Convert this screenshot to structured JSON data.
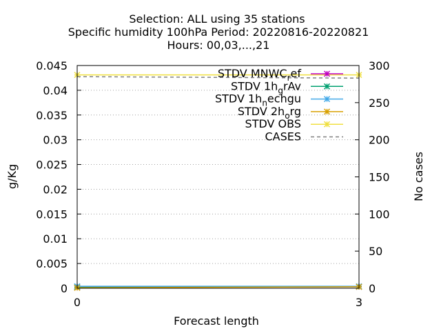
{
  "chart_data": {
    "type": "line",
    "title_lines": [
      "Selection: ALL using    35 stations",
      "Specific humidity 100hPa   Period: 20220816-20220821",
      "Hours:  00,03,...,21"
    ],
    "xlabel": "Forecast length",
    "ylabel": "g/Kg",
    "y2label": "No cases",
    "x": [
      0,
      3
    ],
    "x_ticks": [
      "0",
      "3"
    ],
    "xlim": [
      0,
      3
    ],
    "ylim": [
      0,
      0.045
    ],
    "y_ticks": [
      "0",
      "0.005",
      "0.01",
      "0.015",
      "0.02",
      "0.025",
      "0.03",
      "0.035",
      "0.04",
      "0.045"
    ],
    "y2lim": [
      0,
      300
    ],
    "y2_ticks": [
      "0",
      "50",
      "100",
      "150",
      "200",
      "250",
      "300"
    ],
    "grid": true,
    "legend_position": "top-right",
    "series": [
      {
        "name": "STDV MNWC_ref",
        "name_parts": [
          [
            "STDV MNWC",
            "n"
          ],
          [
            "r",
            "s"
          ],
          [
            "ef",
            "n"
          ]
        ],
        "color": "#c000c0",
        "marker": "x",
        "axis": "y",
        "values": [
          0.0002,
          0.0003
        ]
      },
      {
        "name": "STDV 1hgrAv",
        "name_parts": [
          [
            "STDV 1h",
            "n"
          ],
          [
            "g",
            "s"
          ],
          [
            "rAv",
            "n"
          ]
        ],
        "color": "#00a070",
        "marker": "x",
        "axis": "y",
        "values": [
          0.0002,
          0.0003
        ]
      },
      {
        "name": "STDV 1hnechgu",
        "name_parts": [
          [
            "STDV 1h",
            "n"
          ],
          [
            "n",
            "s"
          ],
          [
            "echgu",
            "n"
          ]
        ],
        "color": "#40a8e8",
        "marker": "x",
        "axis": "y",
        "values": [
          0.0004,
          0.0004
        ]
      },
      {
        "name": "STDV 2horg",
        "name_parts": [
          [
            "STDV 2h",
            "n"
          ],
          [
            "o",
            "s"
          ],
          [
            "rg",
            "n"
          ]
        ],
        "color": "#d8a000",
        "marker": "x",
        "axis": "y",
        "values": [
          0.0001,
          0.0003
        ]
      },
      {
        "name": "STDV OBS",
        "name_parts": [
          [
            "STDV OBS",
            "n"
          ]
        ],
        "color": "#f0e040",
        "marker": "x",
        "axis": "y",
        "values": [
          0.0431,
          0.0431
        ]
      },
      {
        "name": "CASES",
        "name_parts": [
          [
            "CASES",
            "n"
          ]
        ],
        "color": "#808080",
        "marker": "none",
        "dashed": true,
        "axis": "y2",
        "values": [
          285,
          283
        ]
      }
    ]
  }
}
